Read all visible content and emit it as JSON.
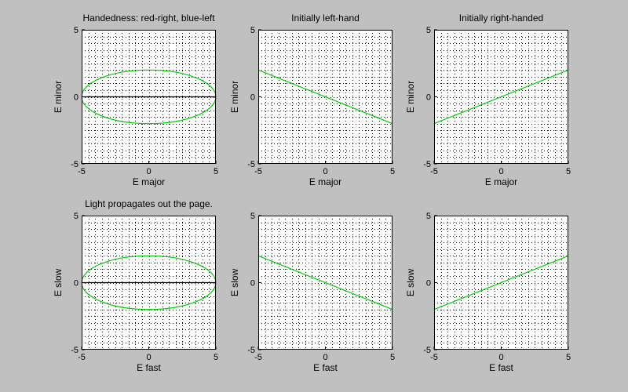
{
  "window": {
    "background": "#c0c0c0"
  },
  "colors": {
    "axes_bg": "#ffffff",
    "grid": "#000000",
    "ellipse": "#00cc00",
    "line": "#00cc00",
    "major_axis": "#000000"
  },
  "chart_data": [
    {
      "type": "line",
      "title": "Handedness: red-right, blue-left",
      "xlabel": "E major",
      "ylabel": "E minor",
      "xlim": [
        -5,
        5
      ],
      "ylim": [
        -5,
        5
      ],
      "xticks": [
        -5,
        0,
        5
      ],
      "yticks": [
        -5,
        0,
        5
      ],
      "grid": true,
      "series": [
        {
          "kind": "ellipse",
          "center": [
            0,
            0
          ],
          "semi_x": 5,
          "semi_y": 2,
          "color": "#00cc00"
        },
        {
          "kind": "segment",
          "x": [
            -5,
            5
          ],
          "y": [
            0,
            0
          ],
          "color": "#000000"
        }
      ]
    },
    {
      "type": "line",
      "title": "Initially left-hand",
      "xlabel": "E major",
      "ylabel": "E minor",
      "xlim": [
        -5,
        5
      ],
      "ylim": [
        -5,
        5
      ],
      "xticks": [
        -5,
        0,
        5
      ],
      "yticks": [
        -5,
        0,
        5
      ],
      "grid": true,
      "series": [
        {
          "kind": "segment",
          "x": [
            -5,
            5
          ],
          "y": [
            2,
            -2
          ],
          "color": "#00cc00"
        }
      ]
    },
    {
      "type": "line",
      "title": "Initially right-handed",
      "xlabel": "E major",
      "ylabel": "E minor",
      "xlim": [
        -5,
        5
      ],
      "ylim": [
        -5,
        5
      ],
      "xticks": [
        -5,
        0,
        5
      ],
      "yticks": [
        -5,
        0,
        5
      ],
      "grid": true,
      "series": [
        {
          "kind": "segment",
          "x": [
            -5,
            5
          ],
          "y": [
            -2,
            2
          ],
          "color": "#00cc00"
        }
      ]
    },
    {
      "type": "line",
      "title": "Light propagates out the page.",
      "xlabel": "E fast",
      "ylabel": "E slow",
      "xlim": [
        -5,
        5
      ],
      "ylim": [
        -5,
        5
      ],
      "xticks": [
        -5,
        0,
        5
      ],
      "yticks": [
        -5,
        0,
        5
      ],
      "grid": true,
      "series": [
        {
          "kind": "ellipse",
          "center": [
            0,
            0
          ],
          "semi_x": 5,
          "semi_y": 2,
          "color": "#00cc00"
        },
        {
          "kind": "segment",
          "x": [
            -5,
            5
          ],
          "y": [
            0,
            0
          ],
          "color": "#000000"
        }
      ]
    },
    {
      "type": "line",
      "title": "",
      "xlabel": "E fast",
      "ylabel": "E slow",
      "xlim": [
        -5,
        5
      ],
      "ylim": [
        -5,
        5
      ],
      "xticks": [
        -5,
        0,
        5
      ],
      "yticks": [
        -5,
        0,
        5
      ],
      "grid": true,
      "series": [
        {
          "kind": "segment",
          "x": [
            -5,
            5
          ],
          "y": [
            2,
            -2
          ],
          "color": "#00cc00"
        }
      ]
    },
    {
      "type": "line",
      "title": "",
      "xlabel": "E fast",
      "ylabel": "E slow",
      "xlim": [
        -5,
        5
      ],
      "ylim": [
        -5,
        5
      ],
      "xticks": [
        -5,
        0,
        5
      ],
      "yticks": [
        -5,
        0,
        5
      ],
      "grid": true,
      "series": [
        {
          "kind": "segment",
          "x": [
            -5,
            5
          ],
          "y": [
            -2,
            2
          ],
          "color": "#00cc00"
        }
      ]
    }
  ]
}
